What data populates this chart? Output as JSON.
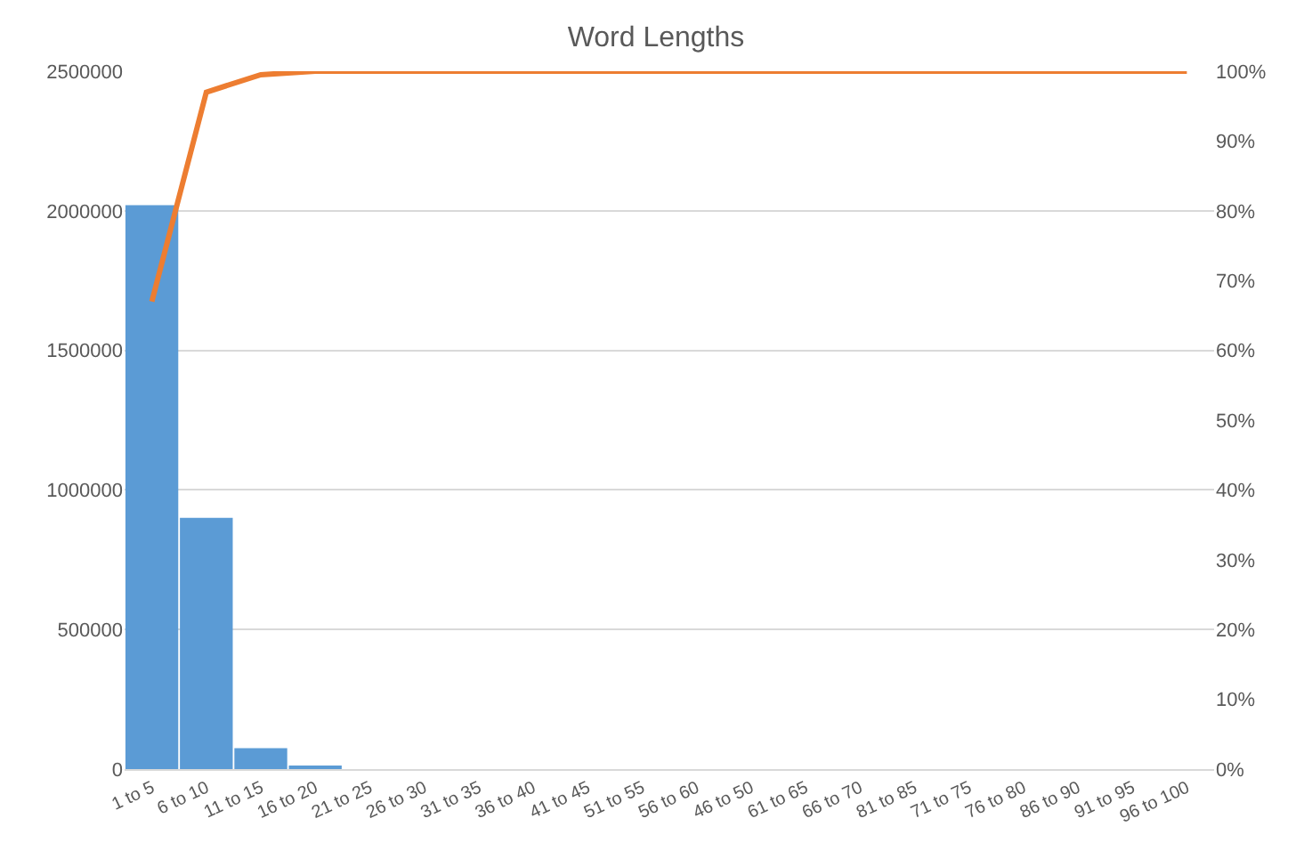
{
  "chart_data": {
    "type": "bar",
    "title": "Word Lengths",
    "categories": [
      "1 to 5",
      "6 to 10",
      "11 to 15",
      "16 to 20",
      "21 to 25",
      "26 to 30",
      "31 to 35",
      "36 to 40",
      "41 to 45",
      "51 to 55",
      "56 to 60",
      "46 to 50",
      "61 to 65",
      "66 to 70",
      "81 to 85",
      "71 to 75",
      "76 to 80",
      "86 to 90",
      "91 to 95",
      "96 to 100"
    ],
    "series": [
      {
        "color": "#5b9bd5",
        "values": [
          2020000,
          900000,
          75000,
          8000,
          0,
          0,
          0,
          0,
          0,
          0,
          0,
          0,
          0,
          0,
          0,
          0,
          0,
          0,
          0,
          0
        ]
      },
      {
        "type": "line",
        "axis": "y2",
        "color": "#ed7d31",
        "values": [
          67,
          97,
          99.5,
          100,
          100,
          100,
          100,
          100,
          100,
          100,
          100,
          100,
          100,
          100,
          100,
          100,
          100,
          100,
          100,
          100
        ]
      }
    ],
    "ylim": [
      0,
      2500000
    ],
    "yticks": [
      0,
      500000,
      1000000,
      1500000,
      2000000,
      2500000
    ],
    "y2lim": [
      0,
      100
    ],
    "y2ticks": [
      {
        "value": 0,
        "label": "0%"
      },
      {
        "value": 10,
        "label": "10%"
      },
      {
        "value": 20,
        "label": "20%"
      },
      {
        "value": 30,
        "label": "30%"
      },
      {
        "value": 40,
        "label": "40%"
      },
      {
        "value": 50,
        "label": "50%"
      },
      {
        "value": 60,
        "label": "60%"
      },
      {
        "value": 70,
        "label": "70%"
      },
      {
        "value": 80,
        "label": "80%"
      },
      {
        "value": 90,
        "label": "90%"
      },
      {
        "value": 100,
        "label": "100%"
      }
    ],
    "grid": "y",
    "legend": false,
    "marker": "none",
    "line_style": "solid"
  }
}
